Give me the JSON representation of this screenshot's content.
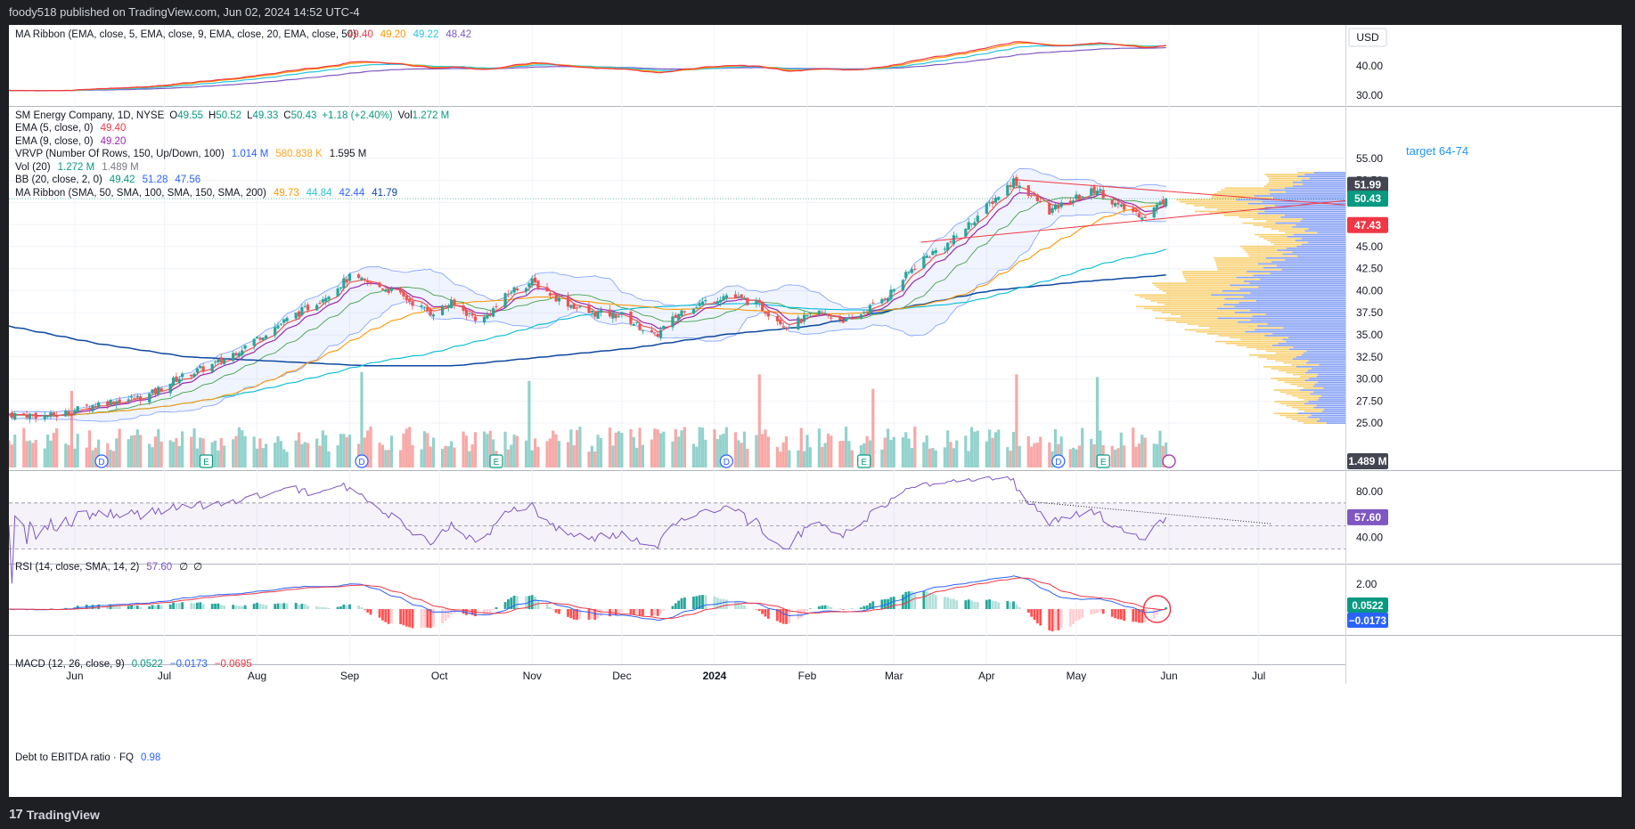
{
  "header": {
    "publish_line": "foody518 published on TradingView.com, Jun 02, 2024 14:52 UTC-4"
  },
  "footer": {
    "brand": "TradingView"
  },
  "currency": "USD",
  "top_pane": {
    "legend_name": "MA Ribbon (EMA, close, 5, EMA, close, 9, EMA, close, 20, EMA, close, 50)",
    "legend_values": [
      "49.40",
      "49.20",
      "49.22",
      "48.42"
    ],
    "ticks": [
      "40.00",
      "30.00"
    ]
  },
  "main_pane": {
    "symbol_line": {
      "name": "SM Energy Company, 1D, NYSE",
      "o_label": "O",
      "o": "49.55",
      "h_label": "H",
      "h": "50.52",
      "l_label": "L",
      "l": "49.33",
      "c_label": "C",
      "c": "50.43",
      "chg": "+1.18 (+2.40%)",
      "vol_label": "Vol",
      "vol": "1.272 M"
    },
    "studies": [
      {
        "name": "EMA (5, close, 0)",
        "values": [
          "49.40"
        ]
      },
      {
        "name": "EMA (9, close, 0)",
        "values": [
          "49.20"
        ]
      },
      {
        "name": "VRVP (Number Of Rows, 150, Up/Down, 100)",
        "values": [
          "1.014 M",
          "580.838 K",
          "1.595 M"
        ]
      },
      {
        "name": "Vol (20)",
        "values": [
          "1.272 M",
          "1.489 M"
        ]
      },
      {
        "name": "BB (20, close, 2, 0)",
        "values": [
          "49.42",
          "51.28",
          "47.56"
        ]
      },
      {
        "name": "MA Ribbon (SMA, 50, SMA, 100, SMA, 150, SMA, 200)",
        "values": [
          "49.73",
          "44.84",
          "42.44",
          "41.79"
        ]
      }
    ],
    "annotation": "target 64-74",
    "price_ticks": [
      "55.00",
      "52.50",
      "50.00",
      "47.50",
      "45.00",
      "42.50",
      "40.00",
      "37.50",
      "35.00",
      "32.50",
      "30.00",
      "27.50",
      "25.00"
    ],
    "price_badges": [
      {
        "text": "51.99",
        "color": "#434651"
      },
      {
        "text": "50.43",
        "color": "#089981"
      },
      {
        "text": "47.43",
        "color": "#f23645"
      }
    ],
    "volume_badge": "1.489 M",
    "event_markers": [
      "D",
      "E",
      "D",
      "E",
      "D",
      "E",
      "D",
      "E"
    ]
  },
  "rsi_pane": {
    "legend_name": "RSI (14, close, SMA, 14, 2)",
    "legend_values": [
      "57.60",
      "∅",
      "∅"
    ],
    "ticks": [
      "80.00",
      "40.00"
    ],
    "badge": "57.60"
  },
  "macd_pane": {
    "legend_name": "MACD (12, 26, close, 9)",
    "legend_values": [
      "0.0522",
      "−0.0173",
      "−0.0695"
    ],
    "ticks": [
      "2.00"
    ],
    "badges": [
      "0.0522",
      "−0.0173"
    ]
  },
  "debt_pane": {
    "legend_name": "Debt to EBITDA ratio · FQ",
    "legend_values": [
      "0.98"
    ]
  },
  "x_axis": {
    "labels": [
      "Jun",
      "Jul",
      "Aug",
      "Sep",
      "Oct",
      "Nov",
      "Dec",
      "2024",
      "Feb",
      "Mar",
      "Apr",
      "May",
      "Jun",
      "Jul"
    ]
  },
  "colors": {
    "up": "#26a69a",
    "down": "#ef5350",
    "ema5": "#ef5350",
    "ema9": "#9c27b0",
    "bb": "#2962ff",
    "sma50": "#ff9800",
    "sma100": "#00bcd4",
    "sma200": "#0d47a1",
    "vrvp_up": "#5b7ff0",
    "vrvp_down": "#f5c040",
    "rsi": "#7e57c2",
    "macd": "#2962ff",
    "signal": "#f23645"
  },
  "chart_data": {
    "type": "candlestick",
    "title": "SM Energy Company, 1D, NYSE",
    "x_range": [
      "2023-05-10",
      "2024-07-30"
    ],
    "y_range": [
      23.5,
      57.5
    ],
    "x": [
      "2023-05",
      "2023-06",
      "2023-07",
      "2023-08",
      "2023-09",
      "2023-10",
      "2023-11",
      "2023-12",
      "2024-01",
      "2024-02",
      "2024-03",
      "2024-04",
      "2024-05",
      "2024-05-31"
    ],
    "series": [
      {
        "name": "Close (approx.)",
        "values": [
          26.0,
          27.5,
          30.5,
          38.0,
          42.0,
          37.0,
          39.5,
          35.5,
          38.5,
          36.0,
          44.5,
          51.5,
          49.0,
          50.43
        ]
      },
      {
        "name": "SMA 200 (approx.)",
        "values": [
          36.0,
          34.0,
          32.5,
          32.0,
          31.5,
          31.5,
          32.5,
          33.5,
          35.0,
          36.0,
          38.0,
          40.0,
          41.0,
          41.79
        ]
      }
    ],
    "last": {
      "open": 49.55,
      "high": 50.52,
      "low": 49.33,
      "close": 50.43,
      "change": 1.18,
      "change_pct": 2.4,
      "volume": 1.272
    }
  }
}
